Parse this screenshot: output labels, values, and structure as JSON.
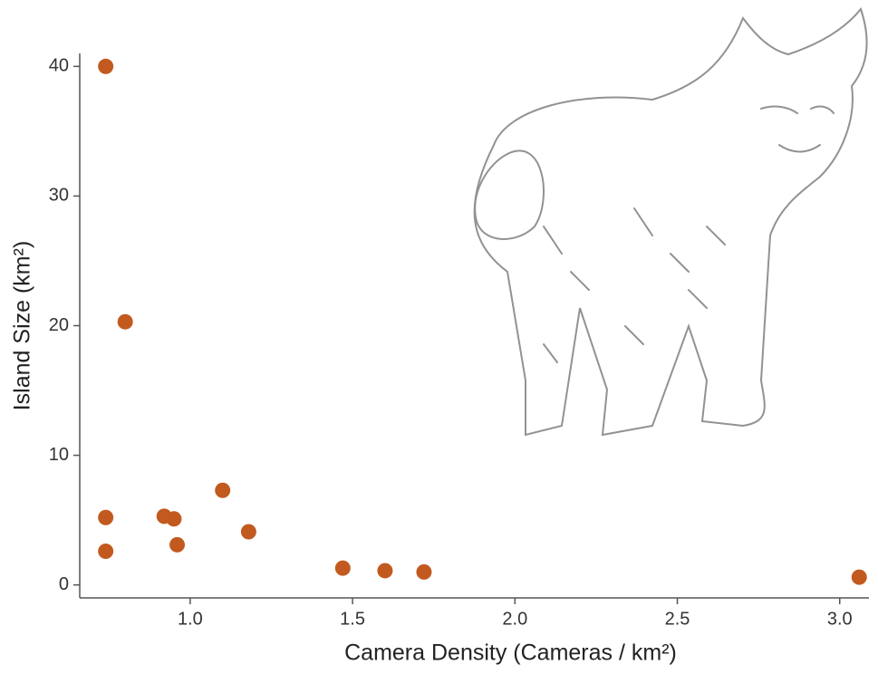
{
  "chart_data": {
    "type": "scatter",
    "x_label": "Camera Density (Cameras / km²)",
    "y_label": "Island Size (km²)",
    "series": [
      {
        "color": "#c25a1f",
        "x": [
          0.74,
          0.8,
          0.74,
          0.74,
          0.92,
          0.95,
          0.96,
          1.1,
          1.18,
          1.47,
          1.6,
          1.72,
          3.06
        ],
        "values": [
          40.0,
          20.3,
          5.2,
          2.6,
          5.3,
          5.1,
          3.1,
          7.3,
          4.1,
          1.3,
          1.1,
          1.0,
          0.6
        ]
      }
    ],
    "xlim": [
      0.66,
      3.09
    ],
    "ylim": [
      -1,
      41
    ],
    "xticks": [
      {
        "value": 1,
        "label": "1.0"
      },
      {
        "value": 1.5,
        "label": "1.5"
      },
      {
        "value": 2,
        "label": "2.0"
      },
      {
        "value": 2.5,
        "label": "2.5"
      },
      {
        "value": 3,
        "label": "3.0"
      }
    ],
    "yticks": [
      0,
      10,
      20,
      30,
      40
    ]
  }
}
